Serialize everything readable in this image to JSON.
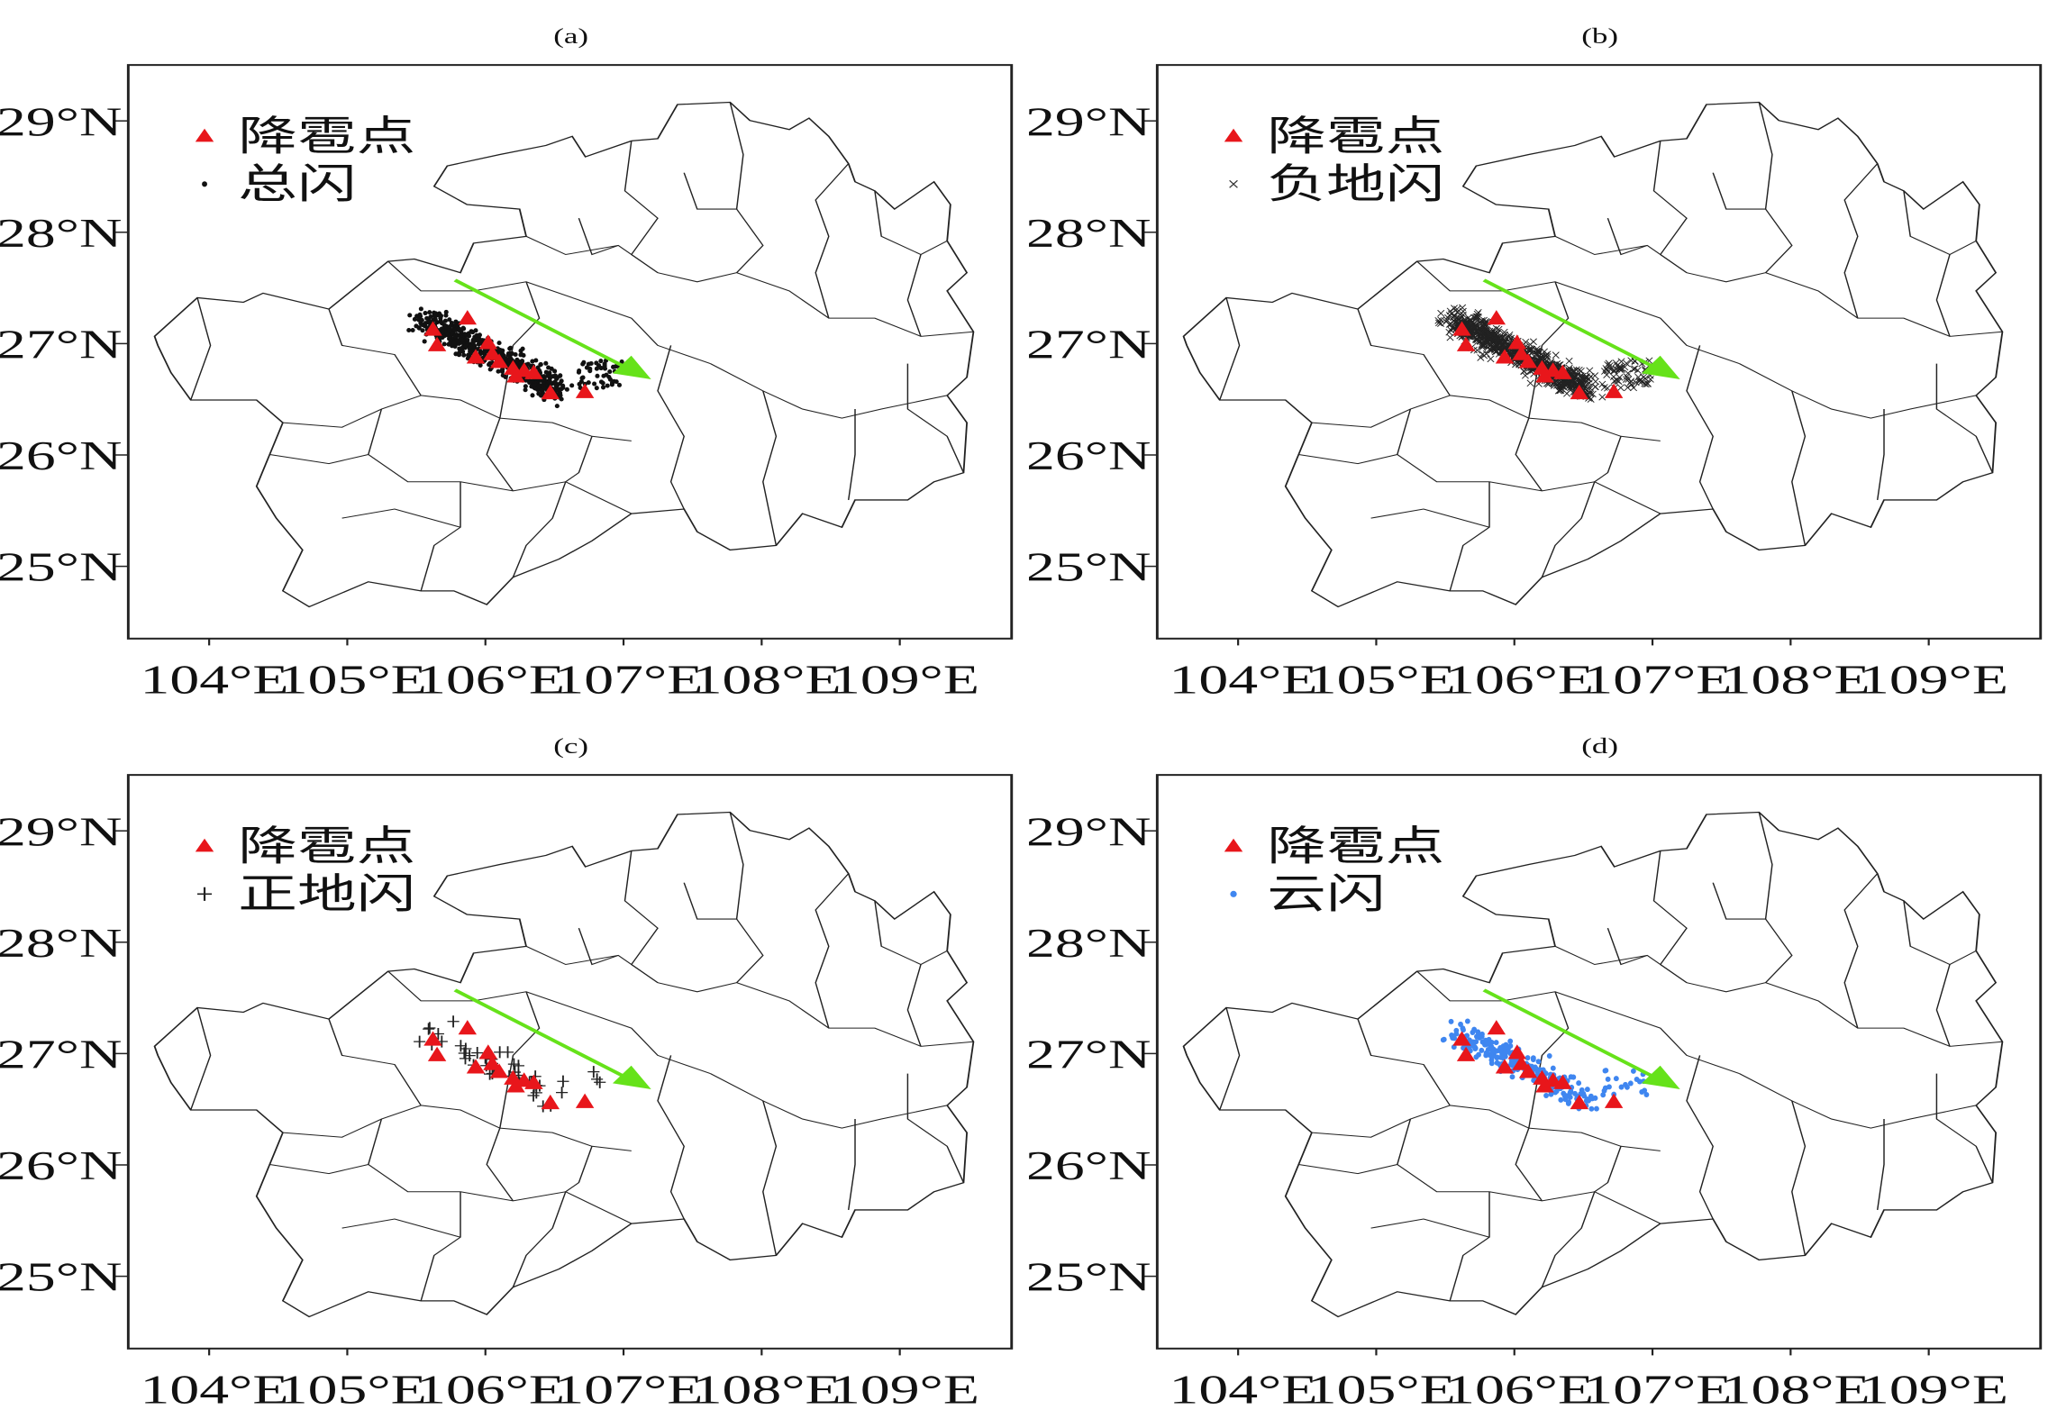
{
  "colors": {
    "hail": "#e8161b",
    "arrow": "#66e21a",
    "cloud_flash": "#3f86f0",
    "flash": "#111111"
  },
  "axes": {
    "lon_ticks": [
      104,
      105,
      106,
      107,
      108,
      109
    ],
    "lon_labels": [
      "104°E",
      "105°E",
      "106°E",
      "107°E",
      "108°E",
      "109°E"
    ],
    "lat_ticks": [
      29,
      28,
      27,
      26,
      25
    ],
    "lat_labels": [
      "29°N",
      "28°N",
      "27°N",
      "26°N",
      "25°N"
    ]
  },
  "hail_points": [
    [
      105.62,
      27.12
    ],
    [
      105.65,
      26.98
    ],
    [
      105.87,
      27.22
    ],
    [
      106.02,
      27.0
    ],
    [
      105.93,
      26.87
    ],
    [
      106.05,
      26.9
    ],
    [
      106.1,
      26.83
    ],
    [
      106.2,
      26.77
    ],
    [
      106.22,
      26.7
    ],
    [
      106.28,
      26.75
    ],
    [
      106.35,
      26.73
    ],
    [
      106.47,
      26.55
    ],
    [
      106.72,
      26.56
    ]
  ],
  "arrow": {
    "from": [
      105.78,
      27.57
    ],
    "to": [
      107.2,
      26.68
    ]
  },
  "panels": [
    {
      "label": "(a)",
      "legend_hail": "降雹点",
      "legend_flash": "总闪",
      "marker": "dot",
      "count": 650
    },
    {
      "label": "(b)",
      "legend_hail": "降雹点",
      "legend_flash": "负地闪",
      "marker": "cross",
      "count": 900
    },
    {
      "label": "(c)",
      "legend_hail": "降雹点",
      "legend_flash": "正地闪",
      "marker": "plus",
      "count": 45
    },
    {
      "label": "(d)",
      "legend_hail": "降雹点",
      "legend_flash": "云闪",
      "marker": "blue",
      "count": 260
    }
  ]
}
